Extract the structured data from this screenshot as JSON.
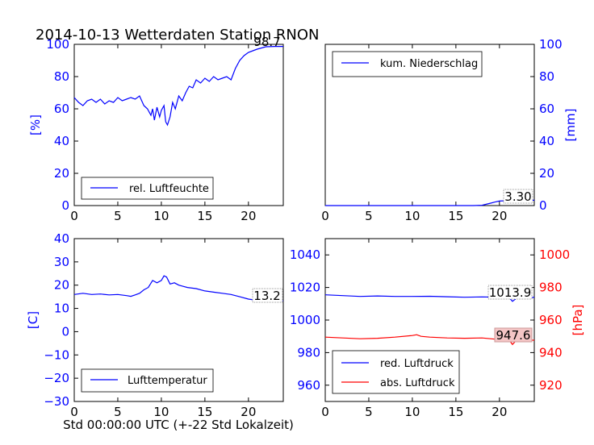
{
  "title": "2014-10-13 Wetterdaten Station RNON",
  "xlabel": "Std 00:00:00 UTC (+-22 Std Lokalzeit)",
  "colors": {
    "blue": "#0000ff",
    "red": "#ff0000",
    "ann_bg": "#f4c6c6"
  },
  "chart_data": [
    {
      "type": "line",
      "name": "humidity",
      "ylabel": "[%]",
      "xlim": [
        0,
        24
      ],
      "ylim": [
        0,
        100
      ],
      "xticks": [
        "0",
        "5",
        "10",
        "15",
        "20"
      ],
      "yticks": [
        "0",
        "20",
        "40",
        "60",
        "80",
        "100"
      ],
      "legend": "rel. Luftfeuchte",
      "legend_position": "lower-left",
      "annotation": "98.7",
      "series": [
        {
          "name": "rel. Luftfeuchte",
          "color": "#0000ff",
          "x": [
            0,
            0.5,
            1,
            1.5,
            2,
            2.5,
            3,
            3.5,
            4,
            4.5,
            5,
            5.5,
            6,
            6.5,
            7,
            7.5,
            8,
            8.4,
            8.8,
            9,
            9.2,
            9.5,
            9.8,
            10,
            10.3,
            10.5,
            10.7,
            11,
            11.3,
            11.6,
            12,
            12.4,
            12.8,
            13.2,
            13.6,
            14,
            14.5,
            15,
            15.5,
            16,
            16.5,
            17,
            17.5,
            18,
            18.5,
            19,
            19.5,
            20,
            20.5,
            21,
            22,
            23,
            24
          ],
          "y": [
            67,
            64,
            62,
            65,
            66,
            64,
            66,
            63,
            65,
            64,
            67,
            65,
            66,
            67,
            66,
            68,
            62,
            60,
            56,
            60,
            53,
            61,
            55,
            59,
            62,
            52,
            50,
            55,
            64,
            60,
            68,
            65,
            70,
            74,
            73,
            78,
            76,
            79,
            77,
            80,
            78,
            79,
            80,
            78,
            85,
            90,
            93,
            95,
            96,
            97,
            98.5,
            98.7,
            98.7
          ]
        }
      ]
    },
    {
      "type": "line",
      "name": "precipitation",
      "ylabel": "[mm]",
      "xlim": [
        0,
        24
      ],
      "ylim": [
        0,
        100
      ],
      "xticks": [
        "0",
        "5",
        "10",
        "15",
        "20"
      ],
      "yticks": [
        "0",
        "20",
        "40",
        "60",
        "80",
        "100"
      ],
      "legend": "kum. Niederschlag",
      "legend_position": "upper-left",
      "annotation": "3.30",
      "series": [
        {
          "name": "kum. Niederschlag",
          "color": "#0000ff",
          "x": [
            0,
            17,
            18,
            19,
            19.5,
            20,
            21,
            22,
            24
          ],
          "y": [
            0,
            0,
            0.2,
            1.5,
            2.2,
            2.8,
            3.1,
            3.3,
            3.3
          ]
        }
      ]
    },
    {
      "type": "line",
      "name": "temperature",
      "ylabel": "[C]",
      "xlim": [
        0,
        24
      ],
      "ylim": [
        -30,
        40
      ],
      "xticks": [
        "0",
        "5",
        "10",
        "15",
        "20"
      ],
      "yticks": [
        "−30",
        "−20",
        "−10",
        "0",
        "10",
        "20",
        "30",
        "40"
      ],
      "legend": "Lufttemperatur",
      "legend_position": "lower-left",
      "annotation": "13.2",
      "series": [
        {
          "name": "Lufttemperatur",
          "color": "#0000ff",
          "x": [
            0,
            1,
            2,
            3,
            4,
            5,
            6,
            6.5,
            7,
            7.5,
            8,
            8.5,
            9,
            9.5,
            10,
            10.3,
            10.6,
            11,
            11.5,
            12,
            12.5,
            13,
            14,
            15,
            16,
            17,
            18,
            19,
            20,
            21,
            22,
            23,
            24
          ],
          "y": [
            16,
            16.5,
            16,
            16.2,
            15.8,
            16,
            15.5,
            15.2,
            15.8,
            16.5,
            18,
            19,
            22,
            21,
            22,
            24,
            23.5,
            20.5,
            21,
            20,
            19.5,
            19,
            18.5,
            17.5,
            17,
            16.5,
            16,
            15,
            14,
            13.5,
            13.3,
            13.2,
            13.2
          ]
        }
      ]
    },
    {
      "type": "line",
      "name": "pressure",
      "ylabel": "[hPa]",
      "xlim": [
        0,
        24
      ],
      "ylim": [
        950,
        1050
      ],
      "ylim_right": [
        910,
        1010
      ],
      "xticks": [
        "0",
        "5",
        "10",
        "15",
        "20"
      ],
      "yticks": [
        "960",
        "980",
        "1000",
        "1020",
        "1040"
      ],
      "yticks_right": [
        "920",
        "940",
        "960",
        "980",
        "1000"
      ],
      "legend": [
        "red. Luftdruck",
        "abs. Luftdruck"
      ],
      "legend_position": "lower-left",
      "annotations": [
        "1013.9",
        "947.6"
      ],
      "series": [
        {
          "name": "red. Luftdruck",
          "color": "#0000ff",
          "axis": "left",
          "x": [
            0,
            2,
            4,
            6,
            8,
            10,
            12,
            14,
            16,
            18,
            20,
            21,
            21.5,
            22,
            23,
            24
          ],
          "y": [
            1015.5,
            1015,
            1014.5,
            1014.8,
            1014.5,
            1014.5,
            1014.6,
            1014.3,
            1014,
            1014.2,
            1014,
            1014.5,
            1011.5,
            1013.5,
            1013.9,
            1013.9
          ]
        },
        {
          "name": "abs. Luftdruck",
          "color": "#ff0000",
          "axis": "right",
          "x": [
            0,
            2,
            4,
            6,
            8,
            10,
            10.5,
            11,
            12,
            14,
            16,
            18,
            20,
            21,
            21.5,
            22,
            23,
            24
          ],
          "y": [
            949.5,
            949,
            948.5,
            948.8,
            949.5,
            950.5,
            951,
            950,
            949.5,
            949,
            948.8,
            949,
            948,
            948.5,
            945,
            947.8,
            947.6,
            947.6
          ]
        }
      ]
    }
  ]
}
